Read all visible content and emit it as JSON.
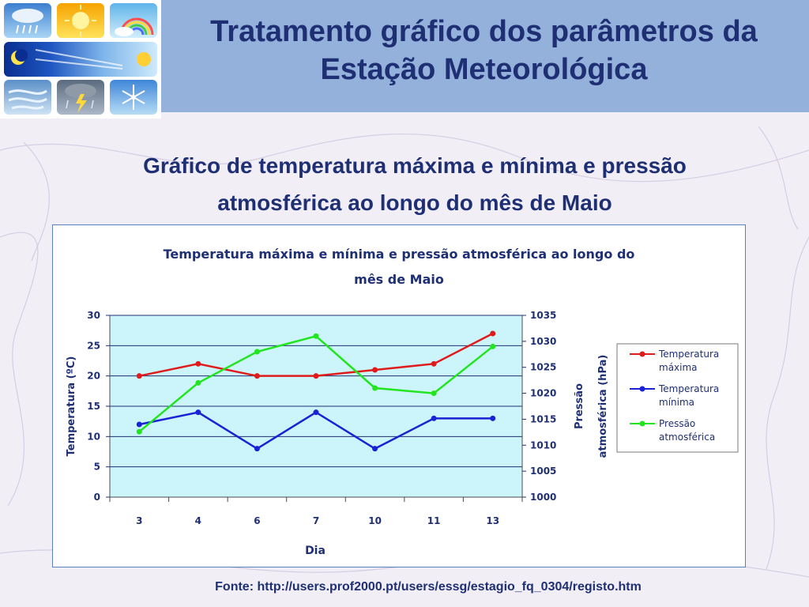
{
  "slide": {
    "title": "Tratamento gráfico dos parâmetros da Estação Meteorológica",
    "subtitle_line1": "Gráfico de temperatura máxima e mínima e pressão",
    "subtitle_line2": "atmosférica ao longo do mês de Maio",
    "source": "Fonte: http://users.prof2000.pt/users/essg/estagio_fq_0304/registo.htm"
  },
  "icons": [
    "snow-rain-icon",
    "sun-icon",
    "rainbow-icon",
    "moon-sun-icon",
    "wind-icon",
    "thunderstorm-icon",
    "snowflake-icon"
  ],
  "colors": {
    "header": "#93b1db",
    "title_text": "#1f2f74",
    "plot_bg": "#ccf5fb",
    "axis_text": "#1f2f74",
    "tmax": "#e01b1b",
    "tmin": "#1a22d6",
    "pressure": "#22e51f"
  },
  "chart_data": {
    "type": "line",
    "title_line1": "Temperatura máxima e mínima e pressão atmosférica ao longo do",
    "title_line2": "mês de Maio",
    "xlabel": "Dia",
    "ylabel": "Temperatura (ºC)",
    "y2label_line1": "Pressão",
    "y2label_line2": "atmosférica (hPa)",
    "categories": [
      "3",
      "4",
      "6",
      "7",
      "10",
      "11",
      "13"
    ],
    "ylim": [
      0,
      30
    ],
    "yticks": [
      "0",
      "5",
      "10",
      "15",
      "20",
      "25",
      "30"
    ],
    "y2lim": [
      1000,
      1035
    ],
    "y2ticks": [
      "1000",
      "1005",
      "1010",
      "1015",
      "1020",
      "1025",
      "1030",
      "1035"
    ],
    "grid": "horizontal",
    "legend_position": "right",
    "series": [
      {
        "name": "Temperatura máxima",
        "axis": "left",
        "values": [
          20,
          22,
          20,
          20,
          21,
          22,
          27
        ]
      },
      {
        "name": "Temperatura mínima",
        "axis": "left",
        "values": [
          12,
          14,
          8,
          14,
          8,
          13,
          13
        ]
      },
      {
        "name": "Pressão atmosférica",
        "axis": "right",
        "values": [
          1012.6,
          1022,
          1028,
          1031,
          1021,
          1020,
          1029
        ]
      }
    ]
  }
}
